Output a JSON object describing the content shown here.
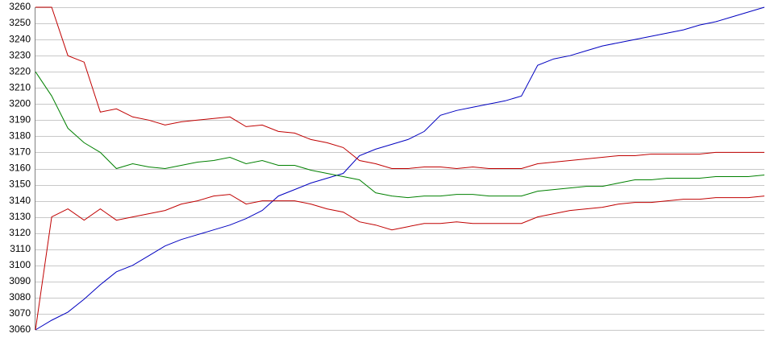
{
  "chart_data": {
    "type": "line",
    "series": [
      {
        "color": "#0000c0",
        "values": [
          3060,
          3066,
          3071,
          3079,
          3088,
          3096,
          3100,
          3106,
          3112,
          3116,
          3119,
          3122,
          3125,
          3129,
          3134,
          3143,
          3147,
          3151,
          3154,
          3157,
          3168,
          3172,
          3175,
          3178,
          3183,
          3193,
          3196,
          3198,
          3200,
          3202,
          3205,
          3224,
          3228,
          3230,
          3233,
          3236,
          3238,
          3240,
          3242,
          3244,
          3246,
          3249,
          3251,
          3254,
          3257,
          3260
        ]
      },
      {
        "color": "#008000",
        "values": [
          3220,
          3205,
          3185,
          3176,
          3170,
          3160,
          3163,
          3161,
          3160,
          3162,
          3164,
          3165,
          3167,
          3163,
          3165,
          3162,
          3162,
          3159,
          3157,
          3155,
          3153,
          3145,
          3143,
          3142,
          3143,
          3143,
          3144,
          3144,
          3143,
          3143,
          3143,
          3146,
          3147,
          3148,
          3149,
          3149,
          3151,
          3153,
          3153,
          3154,
          3154,
          3154,
          3155,
          3155,
          3155,
          3156
        ]
      },
      {
        "color": "#c00000",
        "values": [
          3260,
          3260,
          3230,
          3226,
          3195,
          3197,
          3192,
          3190,
          3187,
          3189,
          3190,
          3191,
          3192,
          3186,
          3187,
          3183,
          3182,
          3178,
          3176,
          3173,
          3165,
          3163,
          3160,
          3160,
          3161,
          3161,
          3160,
          3161,
          3160,
          3160,
          3160,
          3163,
          3164,
          3165,
          3166,
          3167,
          3168,
          3168,
          3169,
          3169,
          3169,
          3169,
          3170,
          3170,
          3170,
          3170
        ]
      },
      {
        "color": "#c00000",
        "values": [
          3060,
          3130,
          3135,
          3128,
          3135,
          3128,
          3130,
          3132,
          3134,
          3138,
          3140,
          3143,
          3144,
          3138,
          3140,
          3140,
          3140,
          3138,
          3135,
          3133,
          3127,
          3125,
          3122,
          3124,
          3126,
          3126,
          3127,
          3126,
          3126,
          3126,
          3126,
          3130,
          3132,
          3134,
          3135,
          3136,
          3138,
          3139,
          3139,
          3140,
          3141,
          3141,
          3142,
          3142,
          3142,
          3143
        ]
      }
    ],
    "ylim": [
      3060,
      3260
    ],
    "yticks": [
      3060,
      3070,
      3080,
      3090,
      3100,
      3110,
      3120,
      3130,
      3140,
      3150,
      3160,
      3170,
      3180,
      3190,
      3200,
      3210,
      3220,
      3230,
      3240,
      3250,
      3260
    ],
    "grid": true
  }
}
